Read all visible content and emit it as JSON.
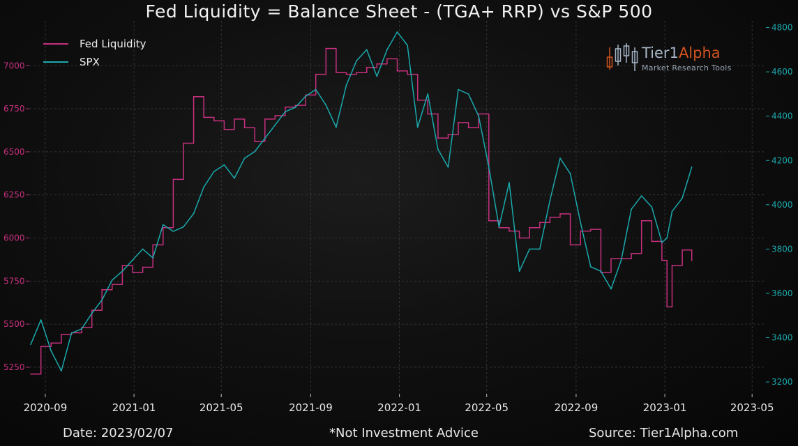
{
  "header": {
    "title": "Fed Liquidity = Balance Sheet - (TGA+ RRP) vs S&P 500"
  },
  "footer": {
    "date": "Date: 2023/02/07",
    "disclaimer": "*Not Investment Advice",
    "source": "Source: Tier1Alpha.com"
  },
  "logo": {
    "brand_part1": "Tier1",
    "brand_part2": "Alpha",
    "tagline": "Market Research Tools",
    "icon": "candlestick-chart-icon"
  },
  "colors": {
    "background": "#060606",
    "fed_liquidity": "#c6307e",
    "spx": "#1aa9ad",
    "grid": "#3a3a3a",
    "logo_tier": "#a7b6c8",
    "logo_alpha": "#d0531f"
  },
  "chart_data": {
    "type": "line",
    "title": "Fed Liquidity = Balance Sheet - (TGA+ RRP) vs S&P 500",
    "xlabel": "",
    "xlim": [
      "2020-08-10",
      "2023-05-20"
    ],
    "x_ticks": [
      "2020-09",
      "2021-01",
      "2021-05",
      "2021-09",
      "2022-01",
      "2022-05",
      "2022-09",
      "2023-01",
      "2023-05"
    ],
    "left_axis": {
      "series": "Fed Liquidity",
      "ylim": [
        5100,
        7260
      ],
      "ticks": [
        5250,
        5500,
        5750,
        6000,
        6250,
        6500,
        6750,
        7000
      ]
    },
    "right_axis": {
      "series": "SPX",
      "ylim": [
        3150,
        4830
      ],
      "ticks": [
        3200,
        3400,
        3600,
        3800,
        4000,
        4200,
        4400,
        4600,
        4800
      ]
    },
    "grid": true,
    "legend": "top-left",
    "series": [
      {
        "name": "Fed Liquidity",
        "axis": "left",
        "color": "#c6307e",
        "x": [
          "2020-08-12",
          "2020-08-26",
          "2020-09-09",
          "2020-09-23",
          "2020-10-07",
          "2020-10-21",
          "2020-11-04",
          "2020-11-18",
          "2020-12-02",
          "2020-12-16",
          "2020-12-30",
          "2021-01-13",
          "2021-01-27",
          "2021-02-10",
          "2021-02-24",
          "2021-03-10",
          "2021-03-24",
          "2021-04-07",
          "2021-04-21",
          "2021-05-05",
          "2021-05-19",
          "2021-06-02",
          "2021-06-16",
          "2021-06-30",
          "2021-07-14",
          "2021-07-28",
          "2021-08-11",
          "2021-08-25",
          "2021-09-08",
          "2021-09-22",
          "2021-10-06",
          "2021-10-20",
          "2021-11-03",
          "2021-11-17",
          "2021-12-01",
          "2021-12-15",
          "2021-12-29",
          "2022-01-12",
          "2022-01-26",
          "2022-02-09",
          "2022-02-23",
          "2022-03-09",
          "2022-03-23",
          "2022-04-06",
          "2022-04-20",
          "2022-05-04",
          "2022-05-18",
          "2022-06-01",
          "2022-06-15",
          "2022-06-29",
          "2022-07-13",
          "2022-07-27",
          "2022-08-10",
          "2022-08-24",
          "2022-09-07",
          "2022-09-21",
          "2022-10-05",
          "2022-10-19",
          "2022-11-02",
          "2022-11-16",
          "2022-11-30",
          "2022-12-14",
          "2022-12-28",
          "2023-01-04",
          "2023-01-11",
          "2023-01-25",
          "2023-02-07"
        ],
        "values": [
          5210,
          5370,
          5390,
          5440,
          5450,
          5480,
          5580,
          5700,
          5730,
          5840,
          5800,
          5830,
          5960,
          6060,
          6340,
          6550,
          6820,
          6700,
          6680,
          6630,
          6690,
          6640,
          6560,
          6690,
          6710,
          6760,
          6770,
          6830,
          6950,
          7100,
          6960,
          6950,
          6960,
          6990,
          7010,
          7040,
          6970,
          6950,
          6800,
          6720,
          6580,
          6600,
          6670,
          6640,
          6720,
          6100,
          6060,
          6040,
          6000,
          6060,
          6090,
          6120,
          6140,
          5960,
          6040,
          6050,
          5800,
          5880,
          5880,
          5910,
          6100,
          5980,
          5870,
          5600,
          5840,
          5930,
          5870
        ]
      },
      {
        "name": "SPX",
        "axis": "right",
        "color": "#1aa9ad",
        "x": [
          "2020-08-12",
          "2020-08-26",
          "2020-09-09",
          "2020-09-23",
          "2020-10-07",
          "2020-10-21",
          "2020-11-04",
          "2020-11-18",
          "2020-12-02",
          "2020-12-16",
          "2020-12-30",
          "2021-01-13",
          "2021-01-27",
          "2021-02-10",
          "2021-02-24",
          "2021-03-10",
          "2021-03-24",
          "2021-04-07",
          "2021-04-21",
          "2021-05-05",
          "2021-05-19",
          "2021-06-02",
          "2021-06-16",
          "2021-06-30",
          "2021-07-14",
          "2021-07-28",
          "2021-08-11",
          "2021-08-25",
          "2021-09-08",
          "2021-09-22",
          "2021-10-06",
          "2021-10-20",
          "2021-11-03",
          "2021-11-17",
          "2021-12-01",
          "2021-12-15",
          "2021-12-29",
          "2022-01-12",
          "2022-01-26",
          "2022-02-09",
          "2022-02-23",
          "2022-03-09",
          "2022-03-23",
          "2022-04-06",
          "2022-04-20",
          "2022-05-04",
          "2022-05-18",
          "2022-06-01",
          "2022-06-15",
          "2022-06-29",
          "2022-07-13",
          "2022-07-27",
          "2022-08-10",
          "2022-08-24",
          "2022-09-07",
          "2022-09-21",
          "2022-10-05",
          "2022-10-19",
          "2022-11-02",
          "2022-11-16",
          "2022-11-30",
          "2022-12-14",
          "2022-12-28",
          "2023-01-04",
          "2023-01-11",
          "2023-01-25",
          "2023-02-07"
        ],
        "values": [
          3370,
          3480,
          3340,
          3250,
          3420,
          3440,
          3510,
          3570,
          3660,
          3700,
          3750,
          3800,
          3760,
          3910,
          3880,
          3900,
          3960,
          4080,
          4150,
          4180,
          4120,
          4210,
          4240,
          4300,
          4360,
          4420,
          4440,
          4490,
          4520,
          4450,
          4350,
          4540,
          4650,
          4700,
          4580,
          4700,
          4780,
          4720,
          4350,
          4500,
          4250,
          4170,
          4520,
          4500,
          4400,
          4170,
          3900,
          4100,
          3700,
          3800,
          3800,
          4020,
          4210,
          4140,
          3920,
          3720,
          3700,
          3620,
          3750,
          3980,
          4040,
          3990,
          3830,
          3850,
          3970,
          4030,
          4170
        ]
      }
    ]
  }
}
